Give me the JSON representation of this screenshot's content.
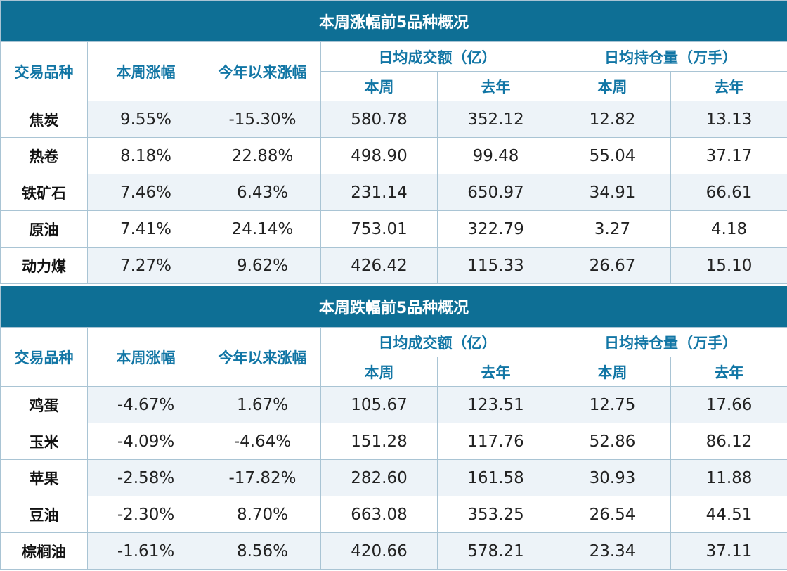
{
  "headers": {
    "col_name": "交易品种",
    "col_week": "本周涨幅",
    "col_ytd": "今年以来涨幅",
    "col_volume_group": "日均成交额（亿）",
    "col_oi_group": "日均持仓量（万手）",
    "sub_this_week": "本周",
    "sub_last_year": "去年"
  },
  "sections": [
    {
      "title": "本周涨幅前5品种概况",
      "rows": [
        {
          "name": "焦炭",
          "week": "9.55%",
          "ytd": "-15.30%",
          "vol_week": "580.78",
          "vol_last_year": "352.12",
          "oi_week": "12.82",
          "oi_last_year": "13.13"
        },
        {
          "name": "热卷",
          "week": "8.18%",
          "ytd": "22.88%",
          "vol_week": "498.90",
          "vol_last_year": "99.48",
          "oi_week": "55.04",
          "oi_last_year": "37.17"
        },
        {
          "name": "铁矿石",
          "week": "7.46%",
          "ytd": "6.43%",
          "vol_week": "231.14",
          "vol_last_year": "650.97",
          "oi_week": "34.91",
          "oi_last_year": "66.61"
        },
        {
          "name": "原油",
          "week": "7.41%",
          "ytd": "24.14%",
          "vol_week": "753.01",
          "vol_last_year": "322.79",
          "oi_week": "3.27",
          "oi_last_year": "4.18"
        },
        {
          "name": "动力煤",
          "week": "7.27%",
          "ytd": "9.62%",
          "vol_week": "426.42",
          "vol_last_year": "115.33",
          "oi_week": "26.67",
          "oi_last_year": "15.10"
        }
      ]
    },
    {
      "title": "本周跌幅前5品种概况",
      "rows": [
        {
          "name": "鸡蛋",
          "week": "-4.67%",
          "ytd": "1.67%",
          "vol_week": "105.67",
          "vol_last_year": "123.51",
          "oi_week": "12.75",
          "oi_last_year": "17.66"
        },
        {
          "name": "玉米",
          "week": "-4.09%",
          "ytd": "-4.64%",
          "vol_week": "151.28",
          "vol_last_year": "117.76",
          "oi_week": "52.86",
          "oi_last_year": "86.12"
        },
        {
          "name": "苹果",
          "week": "-2.58%",
          "ytd": "-17.82%",
          "vol_week": "282.60",
          "vol_last_year": "161.58",
          "oi_week": "30.93",
          "oi_last_year": "11.88"
        },
        {
          "name": "豆油",
          "week": "-2.30%",
          "ytd": "8.70%",
          "vol_week": "663.08",
          "vol_last_year": "353.25",
          "oi_week": "26.54",
          "oi_last_year": "44.51"
        },
        {
          "name": "棕榈油",
          "week": "-1.61%",
          "ytd": "8.56%",
          "vol_week": "420.66",
          "vol_last_year": "578.21",
          "oi_week": "23.34",
          "oi_last_year": "37.11"
        }
      ]
    }
  ],
  "colors": {
    "title_bg": "#0e6f95",
    "header_text": "#1276a5",
    "stripe_bg": "#edf3f8",
    "border": "#a9c4d4"
  }
}
